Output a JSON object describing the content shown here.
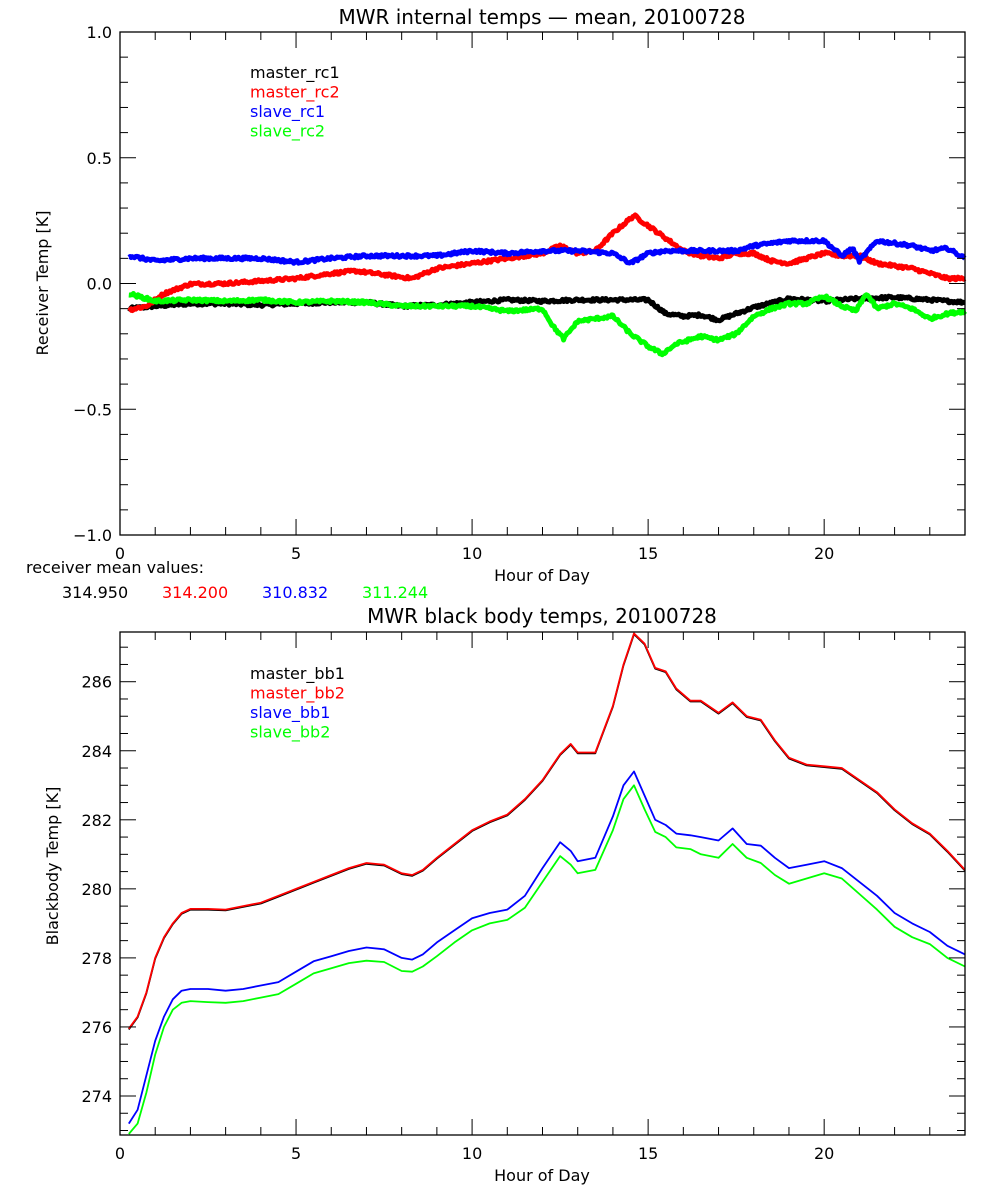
{
  "chart_data": [
    {
      "type": "line",
      "title": "MWR internal temps — mean, 20100728",
      "xlabel": "Hour of Day",
      "ylabel": "Receiver Temp [K]",
      "xlim": [
        0,
        24
      ],
      "ylim": [
        -1.0,
        1.0
      ],
      "xticks": [
        0,
        5,
        10,
        15,
        20
      ],
      "xtick_labels": [
        "0",
        "5",
        "10",
        "15",
        "20"
      ],
      "yticks": [
        -1.0,
        -0.5,
        0.0,
        0.5,
        1.0
      ],
      "ytick_labels": [
        "−1.0",
        "−0.5",
        "0.0",
        "0.5",
        "1.0"
      ],
      "x_minor_step": 1,
      "y_minor_step": 0.1,
      "grid": false,
      "legend_position": "top-left",
      "noisy": true,
      "series": [
        {
          "name": "master_rc1",
          "color": "#000000",
          "x": [
            0.25,
            1,
            2,
            3,
            4,
            5,
            6,
            7,
            8,
            9,
            10,
            11,
            12,
            13,
            14,
            15,
            15.5,
            16,
            16.5,
            17,
            17.5,
            18,
            19,
            20,
            21,
            22,
            23,
            24
          ],
          "y": [
            -0.1,
            -0.09,
            -0.08,
            -0.08,
            -0.085,
            -0.08,
            -0.075,
            -0.075,
            -0.09,
            -0.085,
            -0.075,
            -0.065,
            -0.07,
            -0.065,
            -0.065,
            -0.065,
            -0.12,
            -0.13,
            -0.125,
            -0.145,
            -0.12,
            -0.095,
            -0.06,
            -0.07,
            -0.06,
            -0.055,
            -0.065,
            -0.075
          ]
        },
        {
          "name": "master_rc2",
          "color": "#ff0000",
          "x": [
            0.25,
            0.75,
            1.25,
            2,
            3,
            4,
            5,
            6,
            6.7,
            7.5,
            8.3,
            9,
            10,
            11,
            12,
            12.5,
            13,
            13.5,
            14,
            14.6,
            15,
            15.5,
            16,
            16.5,
            17,
            17.5,
            18,
            18.5,
            19,
            19.5,
            20,
            20.5,
            21,
            21.5,
            22,
            22.5,
            23,
            23.5,
            24
          ],
          "y": [
            -0.105,
            -0.09,
            -0.04,
            -0.002,
            0.0,
            0.01,
            0.02,
            0.04,
            0.05,
            0.035,
            0.02,
            0.06,
            0.08,
            0.1,
            0.12,
            0.15,
            0.12,
            0.13,
            0.2,
            0.27,
            0.23,
            0.18,
            0.13,
            0.11,
            0.1,
            0.12,
            0.12,
            0.09,
            0.08,
            0.1,
            0.12,
            0.11,
            0.11,
            0.08,
            0.07,
            0.06,
            0.04,
            0.02,
            0.02
          ]
        },
        {
          "name": "slave_rc1",
          "color": "#0000ff",
          "x": [
            0.25,
            1,
            2,
            3,
            4,
            5,
            6,
            7,
            8,
            9,
            10,
            11,
            12,
            13,
            14,
            14.5,
            15,
            15.5,
            16,
            17,
            17.5,
            18,
            18.5,
            19,
            20,
            20.5,
            20.8,
            21,
            21.5,
            22,
            22.5,
            23,
            23.5,
            24
          ],
          "y": [
            0.11,
            0.09,
            0.1,
            0.1,
            0.1,
            0.085,
            0.1,
            0.11,
            0.11,
            0.11,
            0.13,
            0.12,
            0.13,
            0.13,
            0.12,
            0.08,
            0.12,
            0.13,
            0.13,
            0.13,
            0.13,
            0.15,
            0.16,
            0.17,
            0.17,
            0.11,
            0.14,
            0.09,
            0.17,
            0.16,
            0.15,
            0.13,
            0.14,
            0.1
          ]
        },
        {
          "name": "slave_rc2",
          "color": "#00ff00",
          "x": [
            0.25,
            1,
            2,
            3,
            4,
            5,
            6,
            7,
            8,
            9,
            10,
            11,
            12,
            12.3,
            12.6,
            13,
            13.5,
            14,
            14.5,
            15,
            15.4,
            15.8,
            16.5,
            17,
            17.5,
            18,
            18.5,
            19,
            19.5,
            20,
            20.5,
            20.9,
            21.2,
            21.5,
            22,
            22.5,
            23,
            23.5,
            24
          ],
          "y": [
            -0.04,
            -0.07,
            -0.065,
            -0.07,
            -0.065,
            -0.075,
            -0.07,
            -0.075,
            -0.09,
            -0.09,
            -0.09,
            -0.11,
            -0.1,
            -0.17,
            -0.22,
            -0.15,
            -0.14,
            -0.13,
            -0.2,
            -0.25,
            -0.28,
            -0.24,
            -0.21,
            -0.225,
            -0.2,
            -0.13,
            -0.1,
            -0.08,
            -0.08,
            -0.05,
            -0.09,
            -0.11,
            -0.04,
            -0.1,
            -0.08,
            -0.1,
            -0.14,
            -0.12,
            -0.11
          ]
        }
      ],
      "annotation": {
        "label": "receiver mean values:",
        "values": [
          {
            "text": "314.950",
            "color": "#000000"
          },
          {
            "text": "314.200",
            "color": "#ff0000"
          },
          {
            "text": "310.832",
            "color": "#0000ff"
          },
          {
            "text": "311.244",
            "color": "#00ff00"
          }
        ]
      }
    },
    {
      "type": "line",
      "title": "MWR black body temps, 20100728",
      "xlabel": "Hour of Day",
      "ylabel": "Blackbody Temp [K]",
      "xlim": [
        0,
        24
      ],
      "ylim": [
        272.87,
        287.44
      ],
      "xticks": [
        0,
        5,
        10,
        15,
        20
      ],
      "xtick_labels": [
        "0",
        "5",
        "10",
        "15",
        "20"
      ],
      "yticks": [
        274,
        276,
        278,
        280,
        282,
        284,
        286
      ],
      "ytick_labels": [
        "274",
        "276",
        "278",
        "280",
        "282",
        "284",
        "286"
      ],
      "x_minor_step": 1,
      "y_minor_step": 0.5,
      "grid": false,
      "legend_position": "top-left",
      "noisy": false,
      "series": [
        {
          "name": "master_bb1",
          "color": "#000000",
          "x": [
            0.25,
            0.5,
            0.75,
            1,
            1.25,
            1.5,
            1.75,
            2,
            2.5,
            3,
            3.5,
            4,
            4.5,
            5,
            5.5,
            6,
            6.5,
            7,
            7.5,
            8,
            8.3,
            8.6,
            9,
            9.5,
            10,
            10.5,
            11,
            11.5,
            12,
            12.5,
            12.8,
            13,
            13.5,
            14,
            14.3,
            14.6,
            14.9,
            15.2,
            15.5,
            15.8,
            16.2,
            16.5,
            17,
            17.4,
            17.8,
            18.2,
            18.6,
            19,
            19.5,
            20,
            20.5,
            21,
            21.5,
            22,
            22.5,
            23,
            23.5,
            24
          ],
          "y": [
            275.95,
            276.3,
            277.0,
            278.0,
            278.6,
            279.0,
            279.3,
            279.42,
            279.42,
            279.4,
            279.5,
            279.6,
            279.8,
            280.0,
            280.2,
            280.4,
            280.6,
            280.75,
            280.7,
            280.45,
            280.4,
            280.55,
            280.9,
            281.3,
            281.7,
            281.95,
            282.15,
            282.6,
            283.15,
            283.9,
            284.2,
            283.95,
            283.95,
            285.3,
            286.5,
            287.4,
            287.1,
            286.4,
            286.3,
            285.8,
            285.45,
            285.45,
            285.1,
            285.4,
            285.0,
            284.9,
            284.3,
            283.8,
            283.6,
            283.55,
            283.5,
            283.15,
            282.8,
            282.3,
            281.9,
            281.6,
            281.1,
            280.55
          ]
        },
        {
          "name": "master_bb2",
          "color": "#ff0000",
          "x": [
            0.25,
            0.5,
            0.75,
            1,
            1.25,
            1.5,
            1.75,
            2,
            2.5,
            3,
            3.5,
            4,
            4.5,
            5,
            5.5,
            6,
            6.5,
            7,
            7.5,
            8,
            8.3,
            8.6,
            9,
            9.5,
            10,
            10.5,
            11,
            11.5,
            12,
            12.5,
            12.8,
            13,
            13.5,
            14,
            14.3,
            14.6,
            14.9,
            15.2,
            15.5,
            15.8,
            16.2,
            16.5,
            17,
            17.4,
            17.8,
            18.2,
            18.6,
            19,
            19.5,
            20,
            20.5,
            21,
            21.5,
            22,
            22.5,
            23,
            23.5,
            24
          ],
          "y": [
            275.95,
            276.3,
            277.0,
            278.0,
            278.6,
            279.0,
            279.3,
            279.42,
            279.42,
            279.4,
            279.5,
            279.6,
            279.8,
            280.0,
            280.2,
            280.4,
            280.6,
            280.75,
            280.7,
            280.45,
            280.4,
            280.55,
            280.9,
            281.3,
            281.7,
            281.95,
            282.15,
            282.6,
            283.15,
            283.9,
            284.2,
            283.95,
            283.95,
            285.3,
            286.5,
            287.4,
            287.1,
            286.4,
            286.3,
            285.8,
            285.45,
            285.45,
            285.1,
            285.4,
            285.0,
            284.9,
            284.3,
            283.8,
            283.6,
            283.55,
            283.5,
            283.15,
            282.8,
            282.3,
            281.9,
            281.6,
            281.1,
            280.55
          ]
        },
        {
          "name": "slave_bb1",
          "color": "#0000ff",
          "x": [
            0.25,
            0.5,
            0.75,
            1,
            1.25,
            1.5,
            1.75,
            2,
            2.5,
            3,
            3.5,
            4,
            4.5,
            5,
            5.5,
            6,
            6.5,
            7,
            7.5,
            8,
            8.3,
            8.6,
            9,
            9.5,
            10,
            10.5,
            11,
            11.5,
            12,
            12.5,
            12.8,
            13,
            13.5,
            14,
            14.3,
            14.6,
            14.9,
            15.2,
            15.5,
            15.8,
            16.2,
            16.5,
            17,
            17.4,
            17.8,
            18.2,
            18.6,
            19,
            19.5,
            20,
            20.5,
            21,
            21.5,
            22,
            22.5,
            23,
            23.5,
            24
          ],
          "y": [
            273.2,
            273.6,
            274.6,
            275.6,
            276.3,
            276.8,
            277.05,
            277.1,
            277.1,
            277.05,
            277.1,
            277.2,
            277.3,
            277.6,
            277.9,
            278.05,
            278.2,
            278.3,
            278.25,
            278.0,
            277.95,
            278.1,
            278.45,
            278.8,
            279.15,
            279.3,
            279.4,
            279.8,
            280.6,
            281.35,
            281.1,
            280.8,
            280.9,
            282.1,
            283.0,
            283.4,
            282.7,
            282.0,
            281.85,
            281.6,
            281.55,
            281.5,
            281.4,
            281.75,
            281.3,
            281.25,
            280.9,
            280.6,
            280.7,
            280.8,
            280.6,
            280.2,
            279.8,
            279.3,
            279.0,
            278.75,
            278.35,
            278.1
          ]
        },
        {
          "name": "slave_bb2",
          "color": "#00ff00",
          "x": [
            0.25,
            0.5,
            0.75,
            1,
            1.25,
            1.5,
            1.75,
            2,
            2.5,
            3,
            3.5,
            4,
            4.5,
            5,
            5.5,
            6,
            6.5,
            7,
            7.5,
            8,
            8.3,
            8.6,
            9,
            9.5,
            10,
            10.5,
            11,
            11.5,
            12,
            12.5,
            12.8,
            13,
            13.5,
            14,
            14.3,
            14.6,
            14.9,
            15.2,
            15.5,
            15.8,
            16.2,
            16.5,
            17,
            17.4,
            17.8,
            18.2,
            18.6,
            19,
            19.5,
            20,
            20.5,
            21,
            21.5,
            22,
            22.5,
            23,
            23.5,
            24
          ],
          "y": [
            272.9,
            273.2,
            274.1,
            275.2,
            276.0,
            276.5,
            276.7,
            276.75,
            276.72,
            276.7,
            276.75,
            276.85,
            276.95,
            277.25,
            277.55,
            277.7,
            277.85,
            277.92,
            277.88,
            277.62,
            277.6,
            277.75,
            278.05,
            278.45,
            278.8,
            279.0,
            279.1,
            279.45,
            280.2,
            280.95,
            280.7,
            280.45,
            280.55,
            281.7,
            282.6,
            283.0,
            282.3,
            281.65,
            281.5,
            281.2,
            281.15,
            281.0,
            280.9,
            281.3,
            280.9,
            280.75,
            280.4,
            280.15,
            280.3,
            280.45,
            280.3,
            279.85,
            279.4,
            278.9,
            278.6,
            278.4,
            278.0,
            277.75
          ]
        }
      ]
    }
  ]
}
